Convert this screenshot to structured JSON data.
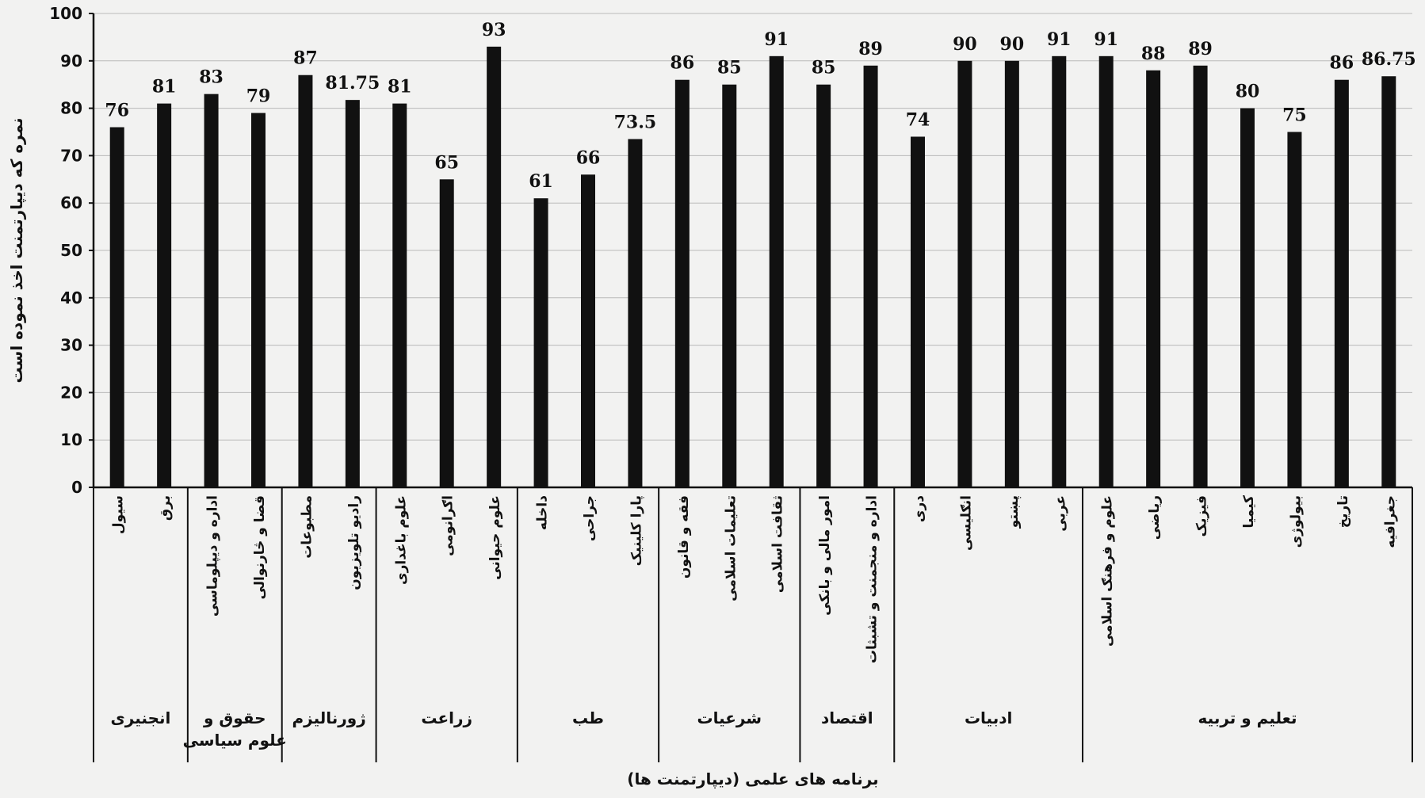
{
  "chart_data": {
    "type": "bar",
    "title": "",
    "ylabel": "نمره که دیپارتمنت اخذ نموده است",
    "xlabel": "برنامه های علمی (دیپارتمنت ها)",
    "ylim": [
      0,
      100
    ],
    "y_ticks": [
      0,
      10,
      20,
      30,
      40,
      50,
      60,
      70,
      80,
      90,
      100
    ],
    "grid": true,
    "bar_color": "#111111",
    "categories": [
      "سیول",
      "برق",
      "اداره و دیپلوماسی",
      "قضا و څارنوالی",
      "مطبوعات",
      "رادیو تلویزیون",
      "علوم باغداری",
      "اګرانومی",
      "علوم حیوانی",
      "داخله",
      "جراحی",
      "پارا کلینیک",
      "فقه و قانون",
      "تعلیمات اسلامی",
      "ثقافت اسلامی",
      "امور مالی و بانکی",
      "اداره و منجمنت و تشبثات",
      "دری",
      "انګلیسی",
      "پښتو",
      "عربی",
      "علوم و فرهنګ اسلامی",
      "ریاضی",
      "فیزیک",
      "کیمیا",
      "بیولوژی",
      "تاریخ",
      "جغرافیه"
    ],
    "values": [
      76,
      81,
      83,
      79,
      87,
      81.75,
      81,
      65,
      93,
      61,
      66,
      73.5,
      86,
      85,
      91,
      85,
      89,
      74,
      90,
      90,
      91,
      91,
      88,
      89,
      80,
      75,
      86,
      86.75
    ],
    "value_labels": [
      "76",
      "81",
      "83",
      "79",
      "87",
      "81.75",
      "81",
      "65",
      "93",
      "61",
      "66",
      "73.5",
      "86",
      "85",
      "91",
      "85",
      "89",
      "74",
      "90",
      "90",
      "91",
      "91",
      "88",
      "89",
      "80",
      "75",
      "86",
      "86.75"
    ],
    "groups": [
      {
        "label_lines": [
          "انجنیری"
        ],
        "count": 2
      },
      {
        "label_lines": [
          "حقوق و",
          "علوم سیاسی"
        ],
        "count": 2
      },
      {
        "label_lines": [
          "ژورنالیزم"
        ],
        "count": 2
      },
      {
        "label_lines": [
          "زراعت"
        ],
        "count": 3
      },
      {
        "label_lines": [
          "طب"
        ],
        "count": 3
      },
      {
        "label_lines": [
          "شرعیات"
        ],
        "count": 3
      },
      {
        "label_lines": [
          "اقتصاد"
        ],
        "count": 2
      },
      {
        "label_lines": [
          "ادبیات"
        ],
        "count": 4
      },
      {
        "label_lines": [
          "تعلیم و تربیه"
        ],
        "count": 7
      }
    ]
  }
}
